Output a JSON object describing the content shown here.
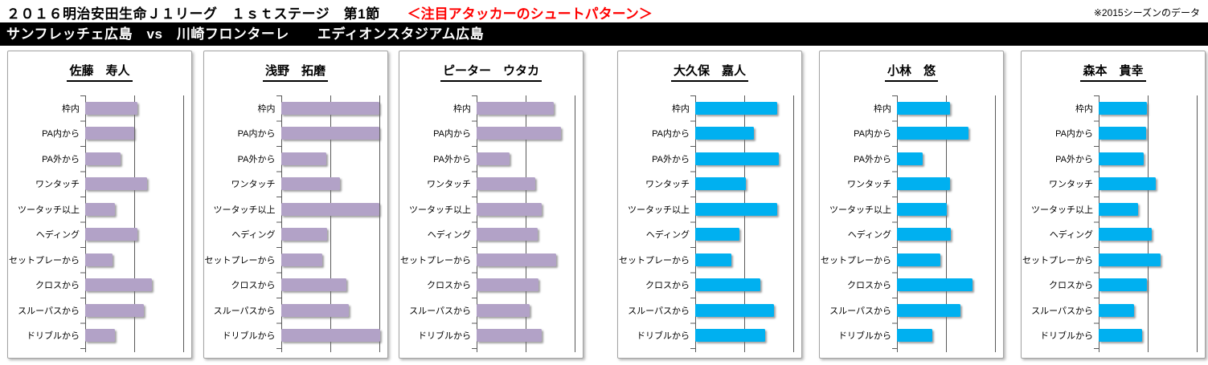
{
  "header": {
    "title": "２０１６明治安田生命Ｊ１リーグ　１ｓｔステージ　第1節",
    "highlight": "＜注目アタッカーのシュートパターン＞",
    "note": "※2015シーズンのデータ",
    "match_bar": "サンフレッチェ広島　vs　川崎フロンターレ　　エディオンスタジアム広島"
  },
  "colors": {
    "hiroshima_bar": "#b2a2c7",
    "kawasaki_bar": "#00b0f0",
    "highlight_text": "#ff0000",
    "gridline": "#595959",
    "match_bar_bg": "#000000",
    "match_bar_text": "#ffffff"
  },
  "chart_data": {
    "type": "bar",
    "orientation": "horizontal",
    "title": "注目アタッカーのシュートパターン（2015シーズンのデータ）",
    "categories": [
      "枠内",
      "PA内から",
      "PA外から",
      "ワンタッチ",
      "ツータッチ以上",
      "ヘディング",
      "セットプレーから",
      "クロスから",
      "スルーパスから",
      "ドリブルから"
    ],
    "value_axis": {
      "tick_labels_visible": false,
      "gridlines_percent": [
        0,
        50,
        100
      ],
      "note": "values are estimated relative bar lengths in % of plot width (rightmost gridline = 100); no numeric axis labels are shown in the image"
    },
    "series": [
      {
        "name": "佐藤　寿人",
        "team": "サンフレッチェ広島",
        "color": "#b2a2c7",
        "values": [
          53,
          50,
          36,
          63,
          30,
          53,
          28,
          68,
          60,
          30
        ]
      },
      {
        "name": "浅野　拓磨",
        "team": "サンフレッチェ広島",
        "color": "#b2a2c7",
        "values": [
          100,
          100,
          46,
          60,
          100,
          47,
          42,
          67,
          69,
          101
        ]
      },
      {
        "name": "ピーター　ウタカ",
        "team": "サンフレッチェ広島",
        "color": "#b2a2c7",
        "values": [
          79,
          86,
          34,
          60,
          66,
          62,
          81,
          63,
          54,
          66
        ]
      },
      {
        "name": "大久保　嘉人",
        "team": "川崎フロンターレ",
        "color": "#00b0f0",
        "values": [
          84,
          60,
          85,
          52,
          84,
          45,
          37,
          66,
          80,
          71
        ]
      },
      {
        "name": "小林　悠",
        "team": "川崎フロンターレ",
        "color": "#00b0f0",
        "values": [
          54,
          73,
          26,
          54,
          51,
          55,
          44,
          77,
          65,
          36
        ]
      },
      {
        "name": "森本　貴幸",
        "team": "川崎フロンターレ",
        "color": "#00b0f0",
        "values": [
          49,
          48,
          46,
          58,
          40,
          54,
          63,
          49,
          36,
          44
        ]
      }
    ]
  }
}
